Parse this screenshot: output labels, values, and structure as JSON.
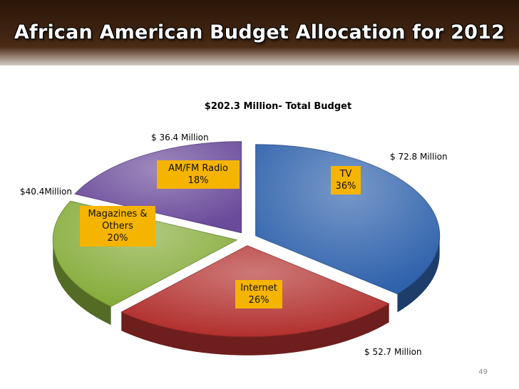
{
  "slide": {
    "title": "African American Budget Allocation for 2012",
    "page_number": "49"
  },
  "chart_data": {
    "type": "pie",
    "title": "$202.3 Million- Total Budget",
    "slices": [
      {
        "label": "TV",
        "percent": "36%",
        "value": 36,
        "amount_label": "$ 72.8 Million",
        "color": "#2f62ac"
      },
      {
        "label": "Internet",
        "percent": "26%",
        "value": 26,
        "amount_label": "$ 52.7 Million",
        "color": "#b2302e"
      },
      {
        "label": "Magazines & Others",
        "percent": "20%",
        "value": 20,
        "amount_label": "$40.4Million",
        "color": "#86ac3a"
      },
      {
        "label": "AM/FM Radio",
        "percent": "18%",
        "value": 18,
        "amount_label": "$ 36.4 Million",
        "color": "#6a4a9a"
      }
    ],
    "label_style": "callout-boxes"
  }
}
